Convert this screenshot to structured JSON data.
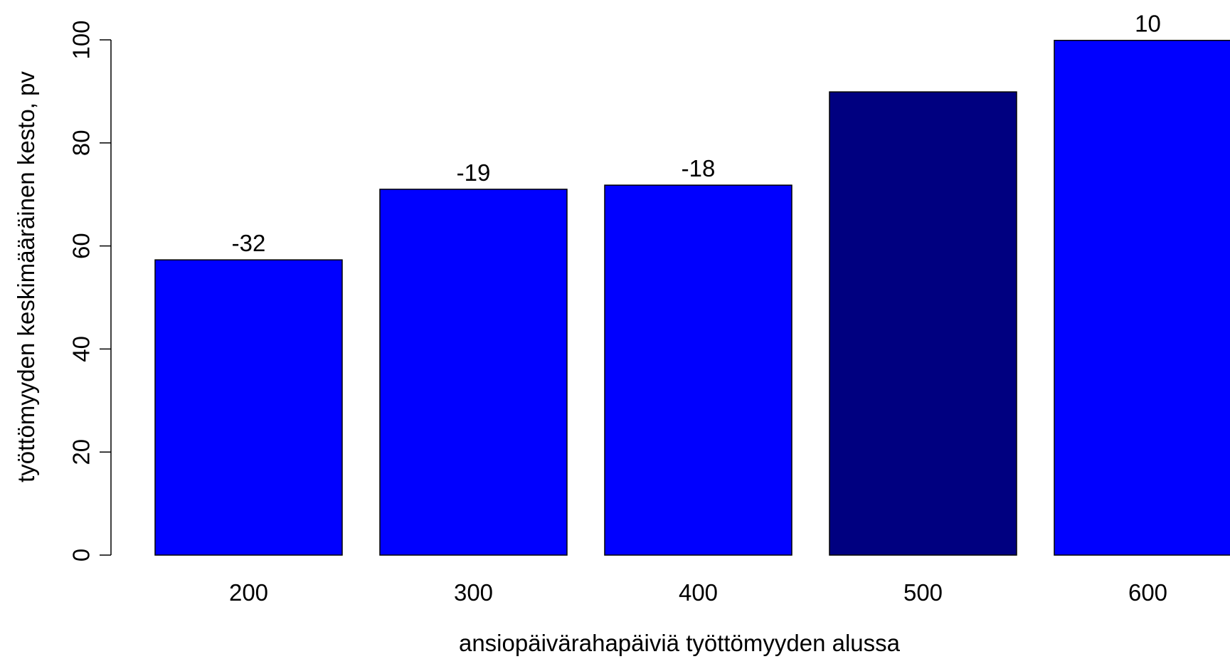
{
  "chart_data": {
    "type": "bar",
    "categories": [
      "200",
      "300",
      "400",
      "500",
      "600"
    ],
    "values": [
      57.3,
      71.0,
      71.8,
      89.9,
      99.9
    ],
    "data_labels": [
      "-32",
      "-19",
      "-18",
      "",
      "10"
    ],
    "bar_colors": [
      "#0000ff",
      "#0000ff",
      "#0000ff",
      "#000080",
      "#0000ff"
    ],
    "xlabel": "ansiopäivärahapäiviä työttömyyden alussa",
    "ylabel": "työttömyyden keskimääräinen kesto, pv",
    "ylim": [
      0,
      100
    ],
    "yticks": [
      0,
      20,
      40,
      60,
      80,
      100
    ],
    "grid": false,
    "legend": "none"
  }
}
